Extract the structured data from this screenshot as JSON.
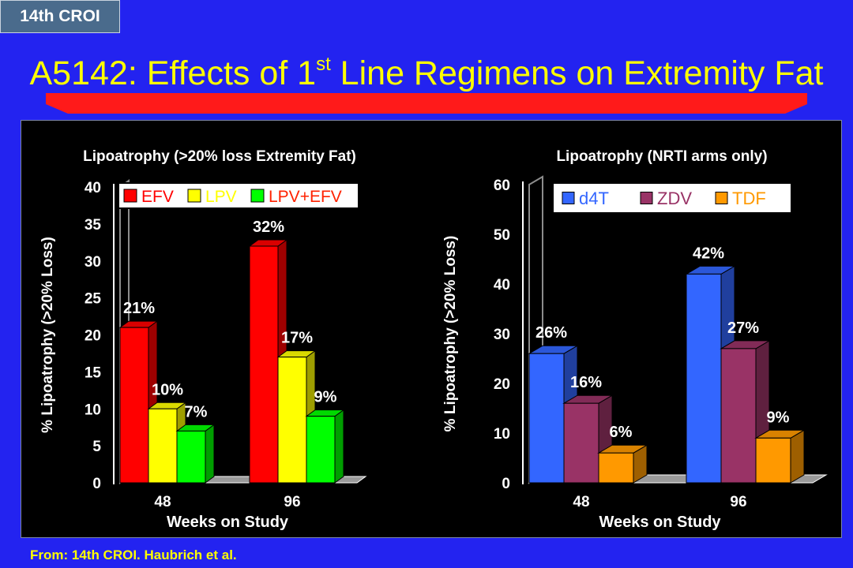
{
  "badge": "14th CROI",
  "title": {
    "main": "A5142: Effects of 1",
    "sup": "st",
    "rest": " Line Regimens on Extremity Fat"
  },
  "footer": "From: 14th CROI. Haubrich et al.",
  "colors": {
    "background": "#2323f0",
    "title": "#ffff00",
    "accent_bar": "#ff1a1a",
    "panel": "#000000"
  },
  "chart_data": [
    {
      "type": "bar",
      "title": "Lipoatrophy (>20% loss Extremity Fat)",
      "xlabel": "Weeks on Study",
      "ylabel": "% Lipoatrophy (>20% Loss)",
      "categories": [
        "48",
        "96"
      ],
      "ylim": [
        0,
        40
      ],
      "yticks": [
        0,
        5,
        10,
        15,
        20,
        25,
        30,
        35,
        40
      ],
      "legend": "top-right",
      "series": [
        {
          "name": "EFV",
          "values": [
            21,
            32
          ],
          "labels": [
            "21%",
            "32%"
          ],
          "color": "#ff0000"
        },
        {
          "name": "LPV",
          "values": [
            10,
            17
          ],
          "labels": [
            "10%",
            "17%"
          ],
          "color": "#ffff00"
        },
        {
          "name": "LPV+EFV",
          "values": [
            7,
            9
          ],
          "labels": [
            "7%",
            "9%"
          ],
          "color": "#00ff00"
        }
      ]
    },
    {
      "type": "bar",
      "title": "Lipoatrophy (NRTI arms only)",
      "xlabel": "Weeks on Study",
      "ylabel": "% Lipoatrophy (>20% Loss)",
      "categories": [
        "48",
        "96"
      ],
      "ylim": [
        0,
        60
      ],
      "yticks": [
        0,
        10,
        20,
        30,
        40,
        50,
        60
      ],
      "legend": "top-right",
      "series": [
        {
          "name": "d4T",
          "values": [
            26,
            42
          ],
          "labels": [
            "26%",
            "42%"
          ],
          "color": "#3366ff"
        },
        {
          "name": "ZDV",
          "values": [
            16,
            27
          ],
          "labels": [
            "16%",
            "27%"
          ],
          "color": "#993366"
        },
        {
          "name": "TDF",
          "values": [
            6,
            9
          ],
          "labels": [
            "6%",
            "9%"
          ],
          "color": "#ff9900"
        }
      ]
    }
  ]
}
